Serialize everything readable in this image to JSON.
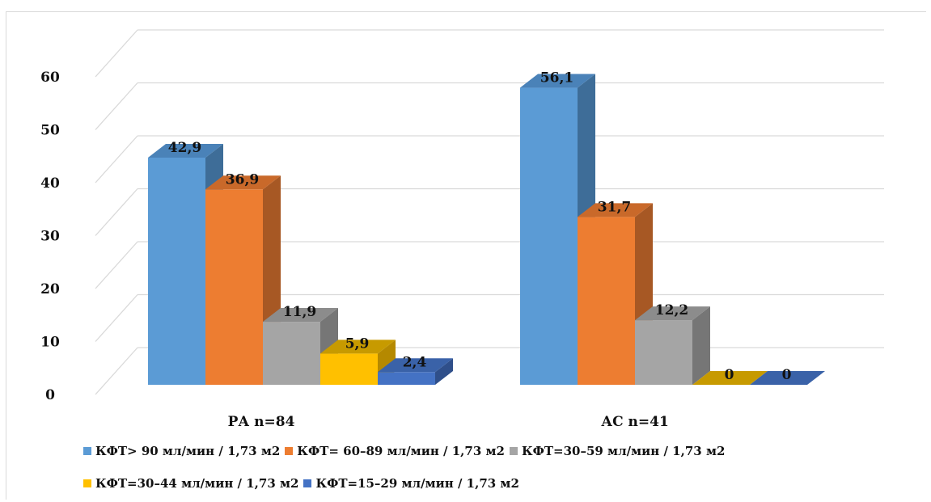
{
  "chart_data": {
    "type": "bar",
    "categories": [
      "РА n=84",
      "АС n=41"
    ],
    "series": [
      {
        "name": "КФТ> 90 мл/мин / 1,73 м2",
        "values": [
          42.9,
          56.1
        ],
        "labels": [
          "42,9",
          "56,1"
        ],
        "color": "#5b9bd5",
        "side": "#3e6d98",
        "top": "#4a82b8"
      },
      {
        "name": "КФТ= 60–89 мл/мин / 1,73 м2",
        "values": [
          36.9,
          31.7
        ],
        "labels": [
          "36,9",
          "31,7"
        ],
        "color": "#ed7d31",
        "side": "#a75824",
        "top": "#c9692a"
      },
      {
        "name": "КФТ=30–59 мл/мин / 1,73 м2",
        "values": [
          11.9,
          12.2
        ],
        "labels": [
          "11,9",
          "12,2"
        ],
        "color": "#a5a5a5",
        "side": "#767676",
        "top": "#8c8c8c"
      },
      {
        "name": "КФТ=30–44 мл/мин / 1,73 м2",
        "values": [
          5.9,
          0
        ],
        "labels": [
          "5,9",
          "0"
        ],
        "color": "#ffc000",
        "side": "#b58900",
        "top": "#c79a00"
      },
      {
        "name": "КФТ=15–29 мл/мин / 1,73 м2",
        "values": [
          2.4,
          0
        ],
        "labels": [
          "2,4",
          "0"
        ],
        "color": "#4472c4",
        "side": "#2f4f8a",
        "top": "#3a62a8"
      }
    ],
    "yticks": [
      "0",
      "10",
      "20",
      "30",
      "40",
      "50",
      "60"
    ],
    "ylim": [
      0,
      60
    ],
    "grid": true,
    "legend": "bottom"
  }
}
